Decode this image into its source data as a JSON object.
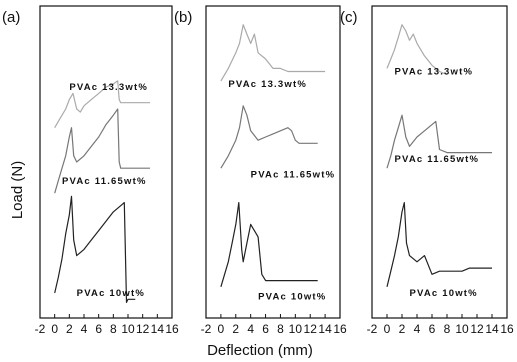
{
  "chart_data": {
    "type": "line",
    "xlabel": "Deflection (mm)",
    "ylabel": "Load (N)",
    "x_ticks": [
      "-2",
      "0",
      "2",
      "4",
      "6",
      "8",
      "10",
      "12",
      "14",
      "16"
    ],
    "panels": [
      {
        "label": "(a)",
        "xlim": [
          -2,
          16
        ],
        "series": [
          {
            "name": "PVAc 13.3wt%",
            "color": "#aaaaaa",
            "x": [
              0,
              0.5,
              1,
              1.5,
              2,
              2.5,
              3,
              3.5,
              4,
              5,
              6,
              7,
              8,
              8.6,
              8.8,
              9,
              10,
              11,
              12,
              13
            ],
            "y": [
              61,
              63,
              65,
              67,
              70,
              72,
              67,
              66,
              68,
              70,
              72,
              74,
              75,
              76,
              70,
              69,
              69,
              69,
              69,
              69
            ],
            "label_pos": [
              2,
              73
            ]
          },
          {
            "name": "PVAc 11.65wt%",
            "color": "#777777",
            "x": [
              0,
              0.5,
              1,
              1.5,
              2,
              2.3,
              2.6,
              3,
              4,
              5,
              6,
              7,
              8,
              8.6,
              8.8,
              9,
              10,
              11,
              12,
              13
            ],
            "y": [
              40,
              44,
              48,
              52,
              58,
              61,
              52,
              50,
              52,
              55,
              58,
              62,
              65,
              67,
              50,
              48,
              48,
              48,
              48,
              48
            ],
            "label_pos": [
              1,
              43
            ]
          },
          {
            "name": "PVAc 10wt%",
            "color": "#222222",
            "x": [
              0,
              0.5,
              1,
              1.5,
              2,
              2.3,
              2.6,
              3,
              4,
              5,
              6,
              7,
              8,
              9,
              9.5,
              9.8,
              10,
              10.5,
              11
            ],
            "y": [
              8,
              13,
              19,
              27,
              33,
              39,
              25,
              20,
              22,
              25,
              28,
              31,
              34,
              36,
              37,
              5,
              6,
              6,
              6
            ],
            "label_pos": [
              3,
              7
            ]
          }
        ]
      },
      {
        "label": "(b)",
        "xlim": [
          -2,
          16
        ],
        "series": [
          {
            "name": "PVAc 13.3wt%",
            "color": "#aaaaaa",
            "x": [
              0,
              1,
              2,
              2.5,
              3,
              3.5,
              4,
              4.5,
              5,
              6,
              7,
              8,
              9,
              10,
              11,
              12,
              13,
              14
            ],
            "y": [
              76,
              80,
              85,
              88,
              94,
              91,
              88,
              91,
              85,
              83,
              80,
              80,
              79,
              79,
              79,
              79,
              79,
              79
            ],
            "label_pos": [
              1,
              74
            ]
          },
          {
            "name": "PVAc 11.65wt%",
            "color": "#777777",
            "x": [
              0,
              1,
              2,
              2.5,
              3,
              3.5,
              4,
              5,
              6,
              7,
              8,
              9,
              9.5,
              10,
              10.5,
              11,
              12,
              13
            ],
            "y": [
              48,
              52,
              57,
              61,
              68,
              65,
              60,
              57,
              58,
              59,
              60,
              61,
              60,
              57,
              56,
              56,
              56,
              56
            ],
            "label_pos": [
              4,
              45
            ]
          },
          {
            "name": "PVAc 10wt%",
            "color": "#222222",
            "x": [
              0,
              0.5,
              1,
              1.5,
              2,
              2.4,
              2.8,
              3,
              3.5,
              4,
              5,
              5.5,
              6,
              7,
              8,
              9,
              10,
              11,
              12,
              13
            ],
            "y": [
              10,
              14,
              18,
              24,
              30,
              37,
              22,
              18,
              24,
              30,
              26,
              14,
              12,
              12,
              12,
              12,
              12,
              12,
              12,
              12
            ],
            "label_pos": [
              5,
              6
            ]
          }
        ]
      },
      {
        "label": "(c)",
        "xlim": [
          -2,
          16
        ],
        "series": [
          {
            "name": "PVAc 13.3wt%",
            "color": "#aaaaaa",
            "x": [
              0,
              0.5,
              1,
              1.5,
              2,
              2.5,
              3,
              3.5,
              4,
              5,
              6,
              7,
              8
            ],
            "y": [
              80,
              83,
              86,
              90,
              94,
              92,
              89,
              91,
              88,
              84,
              81,
              79,
              78
            ],
            "label_pos": [
              1,
              78
            ]
          },
          {
            "name": "PVAc 11.65wt%",
            "color": "#777777",
            "x": [
              0,
              0.5,
              1,
              1.5,
              2,
              2.5,
              3,
              4,
              5,
              6,
              6.5,
              7,
              8,
              9,
              10,
              11,
              12,
              13,
              14
            ],
            "y": [
              48,
              52,
              57,
              61,
              65,
              58,
              55,
              58,
              60,
              62,
              63,
              54,
              53,
              53,
              53,
              53,
              53,
              53,
              53
            ],
            "label_pos": [
              1,
              50
            ]
          },
          {
            "name": "PVAc 10wt%",
            "color": "#222222",
            "x": [
              0,
              0.5,
              1,
              1.5,
              2,
              2.3,
              2.6,
              3,
              4,
              5,
              6,
              7,
              8,
              9,
              10,
              11,
              12,
              13,
              14
            ],
            "y": [
              10,
              15,
              20,
              26,
              34,
              37,
              24,
              20,
              18,
              20,
              14,
              15,
              15,
              15,
              15,
              16,
              16,
              16,
              16
            ],
            "label_pos": [
              3,
              7
            ]
          }
        ]
      }
    ]
  }
}
